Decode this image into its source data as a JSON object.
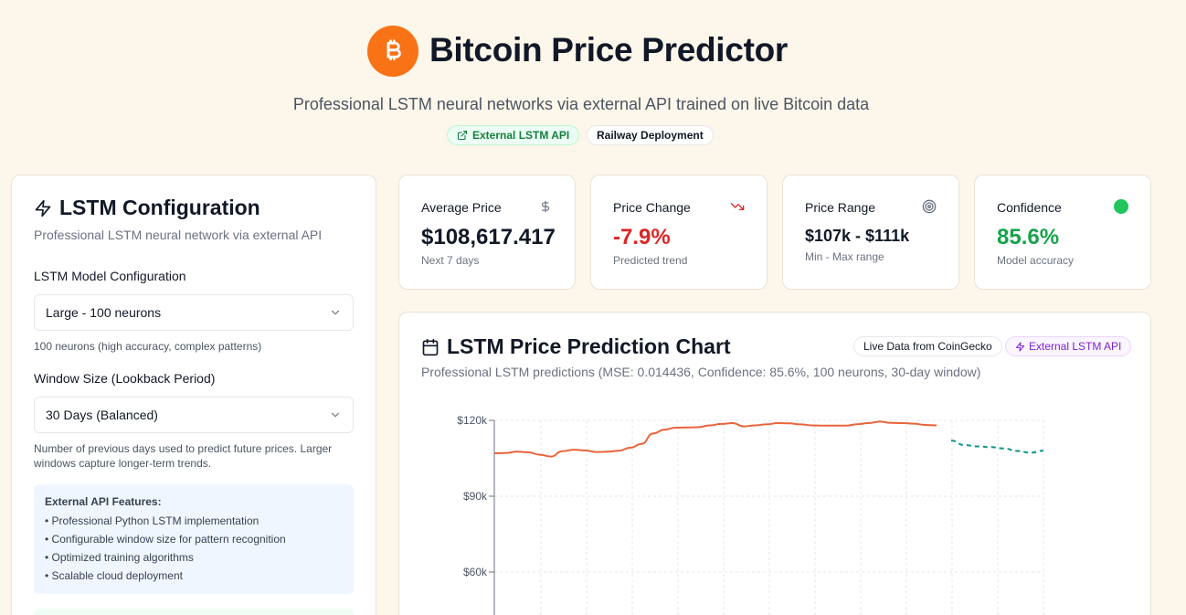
{
  "header": {
    "title": "Bitcoin Price Predictor",
    "subtitle": "Professional LSTM neural networks via external API trained on live Bitcoin data",
    "badges": [
      "External LSTM API",
      "Railway Deployment"
    ],
    "logo_icon": "bitcoin-icon",
    "brand_color": "#f97316"
  },
  "config": {
    "title": "LSTM Configuration",
    "subtitle": "Professional LSTM neural network via external API",
    "model_label": "LSTM Model Configuration",
    "model_value": "Large - 100 neurons",
    "model_hint": "100 neurons (high accuracy, complex patterns)",
    "window_label": "Window Size (Lookback Period)",
    "window_value": "30 Days (Balanced)",
    "window_hint": "Number of previous days used to predict future prices. Larger windows capture longer-term trends.",
    "features_title": "External API Features:",
    "features": [
      "• Professional Python LSTM implementation",
      "• Configurable window size for pattern recognition",
      "• Optimized training algorithms",
      "• Scalable cloud deployment"
    ]
  },
  "stats": [
    {
      "label": "Average Price",
      "value": "$108,617.417",
      "note": "Next 7 days",
      "icon": "dollar-icon"
    },
    {
      "label": "Price Change",
      "value": "-7.9%",
      "note": "Predicted trend",
      "icon": "trending-down-icon",
      "color": "#dc2626"
    },
    {
      "label": "Price Range",
      "value": "$107k - $111k",
      "note": "Min - Max range",
      "icon": "target-icon"
    },
    {
      "label": "Confidence",
      "value": "85.6%",
      "note": "Model accuracy",
      "icon": "status-dot-icon",
      "color": "#16a34a"
    }
  ],
  "chart_panel": {
    "title": "LSTM Price Prediction Chart",
    "subtitle": "Professional LSTM predictions (MSE: 0.014436, Confidence: 85.6%, 100 neurons, 30-day window)",
    "badge_live": "Live Data from CoinGecko",
    "badge_api": "External LSTM API"
  },
  "chart_data": {
    "type": "line",
    "yticks": [
      "$120k",
      "$90k",
      "$60k"
    ],
    "ylim": [
      60000,
      120000
    ],
    "grid": true,
    "series": [
      {
        "style": "solid",
        "color": "#e8643c",
        "values": [
          107000,
          107100,
          107600,
          107400,
          106400,
          105700,
          107800,
          108400,
          108100,
          107500,
          107600,
          108000,
          109200,
          110700,
          114800,
          116300,
          117100,
          117200,
          117300,
          118000,
          118600,
          118900,
          117600,
          118000,
          118400,
          118900,
          118800,
          118400,
          118000,
          117900,
          117900,
          117900,
          118500,
          118900,
          119500,
          119000,
          118900,
          118700,
          118200,
          118000
        ]
      },
      {
        "style": "dashed",
        "color": "#0d9488",
        "values": [
          112000,
          110200,
          109700,
          109400,
          108900,
          107900,
          107200,
          108000
        ]
      }
    ]
  }
}
